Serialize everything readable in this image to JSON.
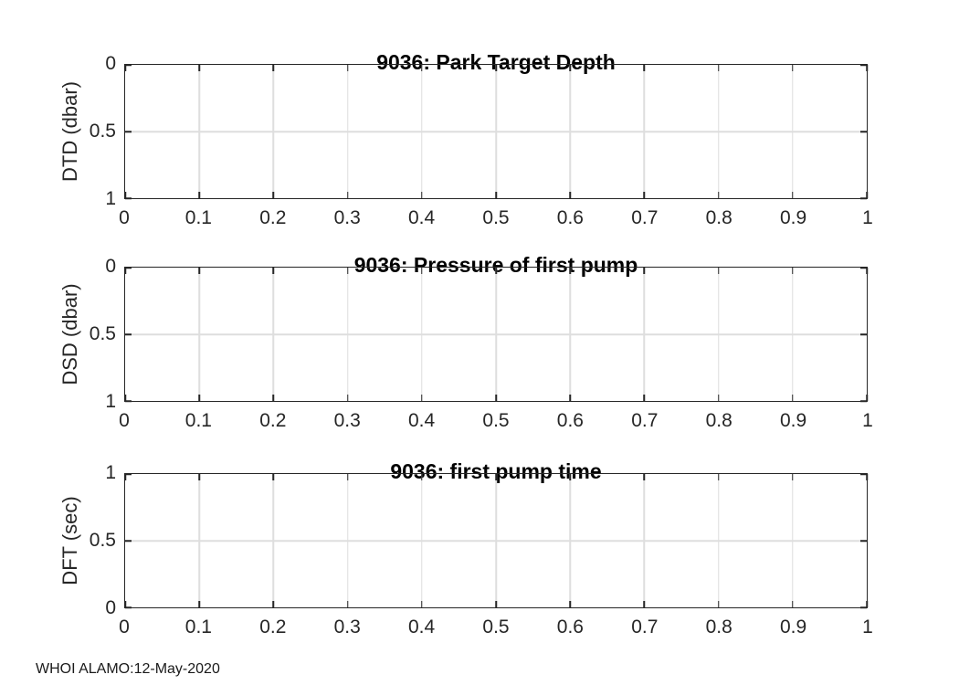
{
  "figure": {
    "footer": "WHOI ALAMO:12-May-2020",
    "background": "#ffffff",
    "colors": {
      "axis": "#262626",
      "grid": "#dedede",
      "tick_label": "#262626",
      "title": "#000000"
    }
  },
  "chart_data": [
    {
      "type": "line",
      "title": "9036: Park Target Depth",
      "xlabel": "",
      "ylabel": "DTD (dbar)",
      "xlim": [
        0,
        1
      ],
      "ylim": [
        0,
        1
      ],
      "y_axis_direction": "reversed",
      "grid": true,
      "legend": false,
      "series": [],
      "x_ticks": {
        "values": [
          0,
          0.1,
          0.2,
          0.3,
          0.4,
          0.5,
          0.6,
          0.7,
          0.8,
          0.9,
          1
        ],
        "labels": [
          "0",
          "0.1",
          "0.2",
          "0.3",
          "0.4",
          "0.5",
          "0.6",
          "0.7",
          "0.8",
          "0.9",
          "1"
        ]
      },
      "y_ticks": {
        "values": [
          0,
          0.5,
          1
        ],
        "labels": [
          "0",
          "0.5",
          "1"
        ]
      }
    },
    {
      "type": "line",
      "title": "9036: Pressure of first pump",
      "xlabel": "",
      "ylabel": "DSD (dbar)",
      "xlim": [
        0,
        1
      ],
      "ylim": [
        0,
        1
      ],
      "y_axis_direction": "reversed",
      "grid": true,
      "legend": false,
      "series": [],
      "x_ticks": {
        "values": [
          0,
          0.1,
          0.2,
          0.3,
          0.4,
          0.5,
          0.6,
          0.7,
          0.8,
          0.9,
          1
        ],
        "labels": [
          "0",
          "0.1",
          "0.2",
          "0.3",
          "0.4",
          "0.5",
          "0.6",
          "0.7",
          "0.8",
          "0.9",
          "1"
        ]
      },
      "y_ticks": {
        "values": [
          0,
          0.5,
          1
        ],
        "labels": [
          "0",
          "0.5",
          "1"
        ]
      }
    },
    {
      "type": "line",
      "title": "9036: first pump time",
      "xlabel": "",
      "ylabel": "DFT (sec)",
      "xlim": [
        0,
        1
      ],
      "ylim": [
        0,
        1
      ],
      "y_axis_direction": "normal",
      "grid": true,
      "legend": false,
      "series": [],
      "x_ticks": {
        "values": [
          0,
          0.1,
          0.2,
          0.3,
          0.4,
          0.5,
          0.6,
          0.7,
          0.8,
          0.9,
          1
        ],
        "labels": [
          "0",
          "0.1",
          "0.2",
          "0.3",
          "0.4",
          "0.5",
          "0.6",
          "0.7",
          "0.8",
          "0.9",
          "1"
        ]
      },
      "y_ticks": {
        "values": [
          0,
          0.5,
          1
        ],
        "labels": [
          "0",
          "0.5",
          "1"
        ]
      }
    }
  ]
}
